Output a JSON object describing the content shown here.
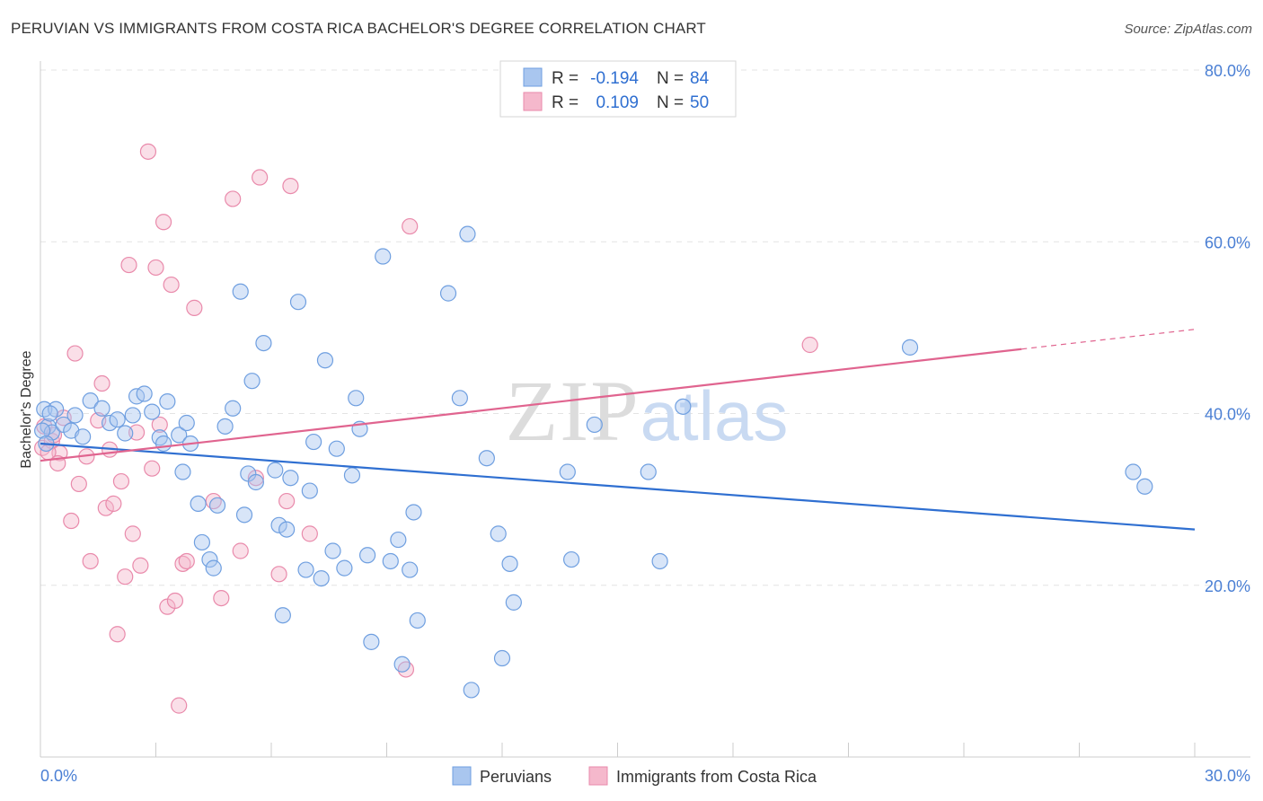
{
  "chart_data": {
    "type": "scatter",
    "title": "PERUVIAN VS IMMIGRANTS FROM COSTA RICA BACHELOR'S DEGREE CORRELATION CHART",
    "source": "Source: ZipAtlas.com",
    "ylabel": "Bachelor's Degree",
    "xlim": [
      0,
      30
    ],
    "ylim": [
      0,
      80
    ],
    "x_tick_labels": [
      "0.0%",
      "30.0%"
    ],
    "y_ticks": [
      20,
      40,
      60,
      80
    ],
    "y_tick_labels": [
      "20.0%",
      "40.0%",
      "60.0%",
      "80.0%"
    ],
    "watermark": "ZIPatlas",
    "colors": {
      "peruvians_fill": "#a9c6ef",
      "peruvians_stroke": "#6f9fe0",
      "peruvians_line": "#2f6fd1",
      "costa_fill": "#f5b8cc",
      "costa_stroke": "#e98aab",
      "costa_line": "#e0648f"
    },
    "legend": {
      "r_label": "R =",
      "n_label": "N =",
      "rows": [
        {
          "r": "-0.194",
          "n": "84"
        },
        {
          "r": "0.109",
          "n": "50"
        }
      ]
    },
    "series": [
      {
        "name": "Peruvians",
        "trend": {
          "x": [
            0,
            30
          ],
          "y": [
            36.5,
            26.5
          ],
          "dashed_from": null
        },
        "points": [
          [
            0.1,
            40.5
          ],
          [
            0.2,
            38.5
          ],
          [
            0.3,
            37.8
          ],
          [
            0.4,
            40.5
          ],
          [
            0.6,
            38.7
          ],
          [
            0.8,
            38.0
          ],
          [
            0.9,
            39.8
          ],
          [
            1.1,
            37.3
          ],
          [
            1.3,
            41.5
          ],
          [
            1.6,
            40.6
          ],
          [
            1.8,
            38.9
          ],
          [
            2.0,
            39.3
          ],
          [
            2.2,
            37.7
          ],
          [
            2.4,
            39.8
          ],
          [
            2.5,
            42.0
          ],
          [
            2.7,
            42.3
          ],
          [
            2.9,
            40.2
          ],
          [
            3.1,
            37.2
          ],
          [
            3.2,
            36.5
          ],
          [
            3.3,
            41.4
          ],
          [
            3.6,
            37.5
          ],
          [
            3.7,
            33.2
          ],
          [
            3.8,
            38.9
          ],
          [
            3.9,
            36.5
          ],
          [
            4.1,
            29.5
          ],
          [
            4.2,
            25.0
          ],
          [
            4.4,
            23.0
          ],
          [
            4.5,
            22.0
          ],
          [
            4.6,
            29.3
          ],
          [
            4.8,
            38.5
          ],
          [
            5.0,
            40.6
          ],
          [
            5.2,
            54.2
          ],
          [
            5.3,
            28.2
          ],
          [
            5.4,
            33.0
          ],
          [
            5.5,
            43.8
          ],
          [
            5.6,
            32.0
          ],
          [
            5.8,
            48.2
          ],
          [
            6.1,
            33.4
          ],
          [
            6.2,
            27.0
          ],
          [
            6.3,
            16.5
          ],
          [
            6.4,
            26.5
          ],
          [
            6.5,
            32.5
          ],
          [
            6.7,
            53.0
          ],
          [
            6.9,
            21.8
          ],
          [
            7.0,
            31.0
          ],
          [
            7.1,
            36.7
          ],
          [
            7.3,
            20.8
          ],
          [
            7.4,
            46.2
          ],
          [
            7.6,
            24.0
          ],
          [
            7.7,
            35.9
          ],
          [
            7.9,
            22.0
          ],
          [
            8.1,
            32.8
          ],
          [
            8.2,
            41.8
          ],
          [
            8.3,
            38.2
          ],
          [
            8.5,
            23.5
          ],
          [
            8.6,
            13.4
          ],
          [
            8.9,
            58.3
          ],
          [
            9.1,
            22.8
          ],
          [
            9.3,
            25.3
          ],
          [
            9.4,
            10.8
          ],
          [
            9.6,
            21.8
          ],
          [
            9.7,
            28.5
          ],
          [
            9.8,
            15.9
          ],
          [
            10.6,
            54.0
          ],
          [
            10.9,
            41.8
          ],
          [
            11.1,
            60.9
          ],
          [
            11.2,
            7.8
          ],
          [
            11.6,
            34.8
          ],
          [
            11.9,
            26.0
          ],
          [
            12.0,
            11.5
          ],
          [
            12.2,
            22.5
          ],
          [
            12.3,
            18.0
          ],
          [
            13.7,
            33.2
          ],
          [
            13.8,
            23.0
          ],
          [
            14.4,
            38.7
          ],
          [
            15.8,
            33.2
          ],
          [
            16.1,
            22.8
          ],
          [
            16.7,
            40.8
          ],
          [
            22.6,
            47.7
          ],
          [
            28.4,
            33.2
          ],
          [
            28.7,
            31.5
          ],
          [
            0.05,
            38.0
          ],
          [
            0.15,
            36.5
          ],
          [
            0.25,
            40.0
          ]
        ]
      },
      {
        "name": "Immigrants from Costa Rica",
        "trend": {
          "x": [
            0,
            30
          ],
          "y": [
            34.5,
            49.8
          ],
          "dashed_from": 25.5
        },
        "points": [
          [
            0.05,
            36.0
          ],
          [
            0.1,
            38.5
          ],
          [
            0.3,
            36.8
          ],
          [
            0.5,
            35.4
          ],
          [
            0.6,
            39.5
          ],
          [
            0.8,
            27.5
          ],
          [
            0.9,
            47.0
          ],
          [
            1.0,
            31.8
          ],
          [
            1.2,
            35.0
          ],
          [
            1.3,
            22.8
          ],
          [
            1.5,
            39.2
          ],
          [
            1.6,
            43.5
          ],
          [
            1.7,
            29.0
          ],
          [
            1.8,
            35.8
          ],
          [
            1.9,
            29.5
          ],
          [
            2.0,
            14.3
          ],
          [
            2.1,
            32.1
          ],
          [
            2.2,
            21.0
          ],
          [
            2.3,
            57.3
          ],
          [
            2.4,
            26.0
          ],
          [
            2.5,
            37.8
          ],
          [
            2.6,
            22.3
          ],
          [
            2.8,
            70.5
          ],
          [
            2.9,
            33.6
          ],
          [
            3.0,
            57.0
          ],
          [
            3.1,
            38.7
          ],
          [
            3.2,
            62.3
          ],
          [
            3.3,
            17.5
          ],
          [
            3.4,
            55.0
          ],
          [
            3.5,
            18.2
          ],
          [
            3.6,
            6.0
          ],
          [
            3.7,
            22.5
          ],
          [
            3.8,
            22.8
          ],
          [
            4.0,
            52.3
          ],
          [
            4.5,
            29.8
          ],
          [
            4.7,
            18.5
          ],
          [
            5.0,
            65.0
          ],
          [
            5.2,
            24.0
          ],
          [
            5.6,
            32.5
          ],
          [
            5.7,
            67.5
          ],
          [
            6.2,
            21.3
          ],
          [
            6.4,
            29.8
          ],
          [
            6.5,
            66.5
          ],
          [
            7.0,
            26.0
          ],
          [
            9.5,
            10.2
          ],
          [
            9.6,
            61.8
          ],
          [
            20.0,
            48.0
          ],
          [
            0.2,
            35.5
          ],
          [
            0.35,
            37.5
          ],
          [
            0.45,
            34.2
          ]
        ]
      }
    ]
  }
}
